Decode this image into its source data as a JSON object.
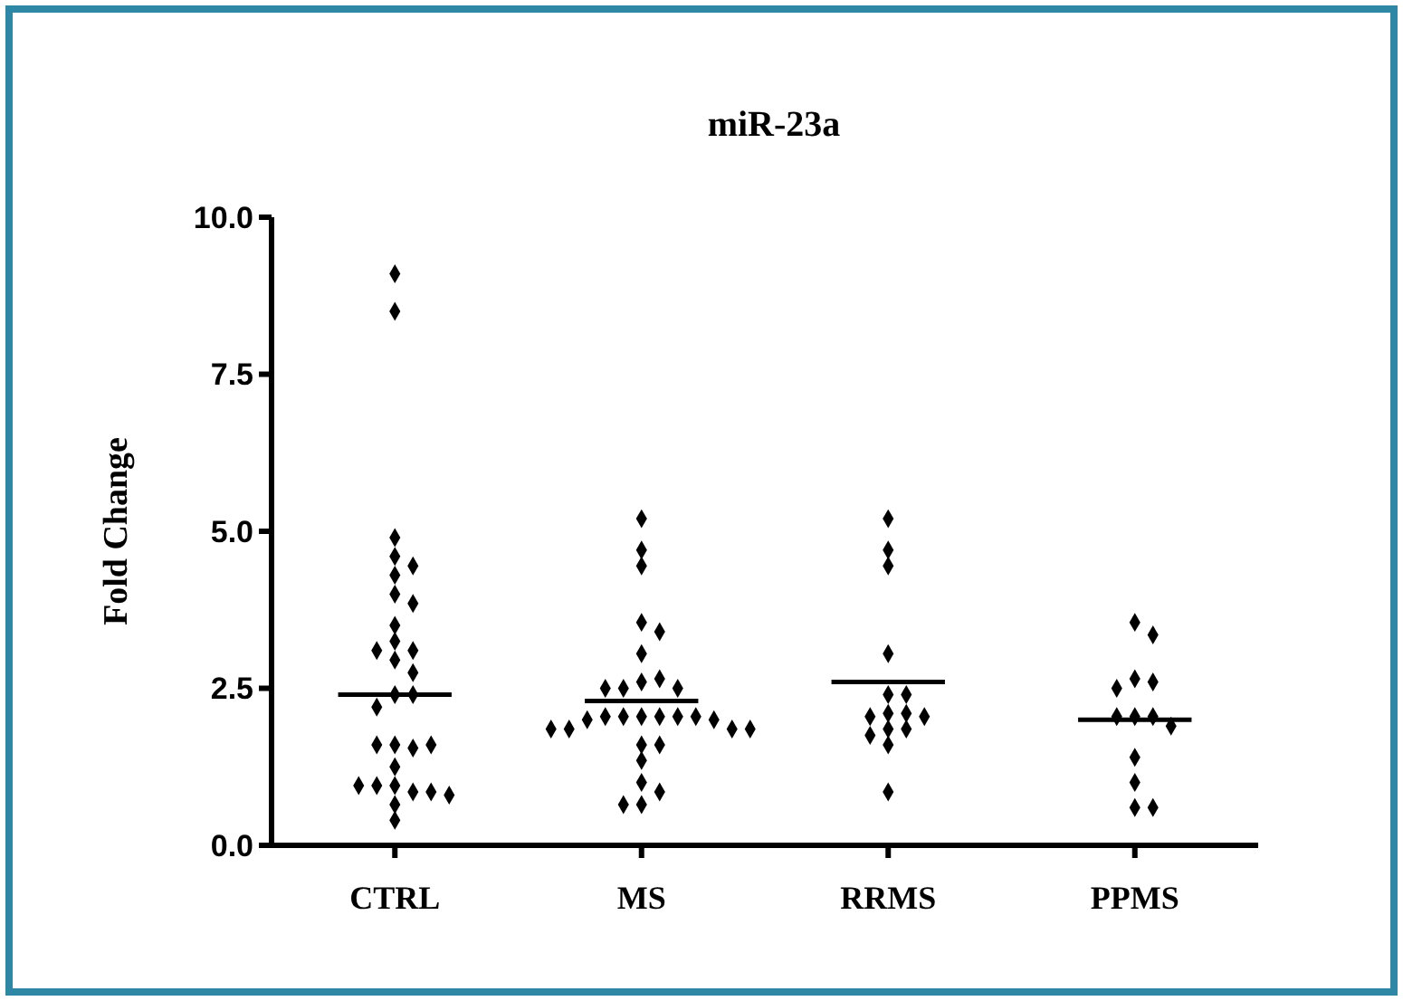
{
  "chart_data": {
    "type": "scatter",
    "title": "miR-23a",
    "ylabel": "Fold Change",
    "categories": [
      "CTRL",
      "MS",
      "RRMS",
      "PPMS"
    ],
    "ylim": [
      0,
      10
    ],
    "yticks": [
      {
        "value": 0,
        "label": "0.0"
      },
      {
        "value": 2.5,
        "label": "2.5"
      },
      {
        "value": 5,
        "label": "5.0"
      },
      {
        "value": 7.5,
        "label": "7.5"
      },
      {
        "value": 10,
        "label": "10.0"
      }
    ],
    "grid": false,
    "marker": "diamond",
    "series": [
      {
        "color": "#000000",
        "x": [
          "CTRL",
          "CTRL",
          "CTRL",
          "CTRL",
          "CTRL",
          "CTRL",
          "CTRL",
          "CTRL",
          "CTRL",
          "CTRL",
          "CTRL",
          "CTRL",
          "CTRL",
          "CTRL",
          "CTRL",
          "CTRL",
          "CTRL",
          "CTRL",
          "CTRL",
          "CTRL",
          "CTRL",
          "CTRL",
          "CTRL",
          "CTRL",
          "CTRL",
          "CTRL",
          "CTRL",
          "CTRL",
          "CTRL",
          "CTRL",
          "MS",
          "MS",
          "MS",
          "MS",
          "MS",
          "MS",
          "MS",
          "MS",
          "MS",
          "MS",
          "MS",
          "MS",
          "MS",
          "MS",
          "MS",
          "MS",
          "MS",
          "MS",
          "MS",
          "MS",
          "MS",
          "MS",
          "MS",
          "MS",
          "MS",
          "MS",
          "MS",
          "MS",
          "MS",
          "MS",
          "RRMS",
          "RRMS",
          "RRMS",
          "RRMS",
          "RRMS",
          "RRMS",
          "RRMS",
          "RRMS",
          "RRMS",
          "RRMS",
          "RRMS",
          "RRMS",
          "RRMS",
          "RRMS",
          "RRMS",
          "PPMS",
          "PPMS",
          "PPMS",
          "PPMS",
          "PPMS",
          "PPMS",
          "PPMS",
          "PPMS",
          "PPMS",
          "PPMS",
          "PPMS",
          "PPMS",
          "PPMS"
        ],
        "values": [
          9.1,
          8.5,
          4.9,
          4.6,
          4.3,
          4.45,
          4.0,
          3.85,
          3.5,
          3.25,
          3.1,
          3.1,
          2.95,
          2.75,
          2.4,
          2.4,
          2.2,
          1.6,
          1.55,
          1.6,
          1.6,
          1.25,
          0.95,
          0.85,
          0.95,
          0.85,
          0.95,
          0.8,
          0.65,
          0.4,
          5.2,
          4.7,
          4.45,
          3.55,
          3.4,
          3.05,
          2.6,
          2.65,
          2.5,
          2.5,
          2.5,
          2.05,
          2.05,
          2.05,
          2.05,
          2.05,
          2.05,
          2.0,
          2.0,
          1.85,
          1.85,
          1.85,
          1.85,
          1.6,
          1.6,
          1.35,
          1.0,
          0.85,
          0.65,
          0.65,
          5.2,
          4.7,
          4.45,
          3.05,
          2.4,
          2.4,
          2.1,
          2.1,
          2.05,
          2.05,
          1.85,
          1.85,
          1.75,
          1.6,
          0.85,
          3.55,
          3.35,
          2.65,
          2.6,
          2.5,
          2.05,
          2.05,
          2.05,
          1.9,
          1.4,
          1.0,
          0.6,
          0.6
        ]
      },
      {
        "type": "box",
        "color": "#000000",
        "boxes": [
          {
            "low": 2.4,
            "q1": 2.4,
            "median": 2.4,
            "q3": 2.4,
            "high": 2.4
          },
          {
            "low": 2.3,
            "q1": 2.3,
            "median": 2.3,
            "q3": 2.3,
            "high": 2.3
          },
          {
            "low": 2.6,
            "q1": 2.6,
            "median": 2.6,
            "q3": 2.6,
            "high": 2.6
          },
          {
            "low": 2.0,
            "q1": 2.0,
            "median": 2.0,
            "q3": 2.0,
            "high": 2.0
          }
        ]
      }
    ]
  }
}
